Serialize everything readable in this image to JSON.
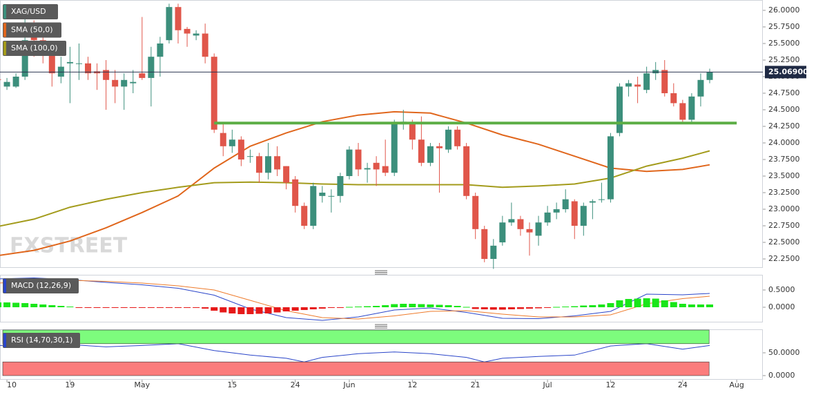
{
  "chart_data": [
    {
      "type": "candlestick",
      "up_color": "#3c8f7c",
      "down_color": "#e0564a",
      "series": [
        {
          "name": "XAG/USD",
          "color": "#3c8f7c",
          "open": [
            24.96,
            24.85,
            24.85,
            25.0,
            25.6,
            25.55,
            25.35,
            25.0,
            25.2,
            25.2,
            25.2,
            25.08,
            25.1,
            24.95,
            24.85,
            24.9,
            25.05,
            24.98,
            25.3,
            25.55,
            26.05,
            25.72,
            25.62,
            25.65,
            25.3,
            24.15,
            23.95,
            24.05,
            23.8,
            23.8,
            23.55,
            23.8,
            23.65,
            23.45,
            23.05,
            22.75,
            23.2,
            23.2,
            23.2,
            23.5,
            23.9,
            23.6,
            23.7,
            23.65,
            23.55,
            24.28,
            24.3,
            24.05,
            23.7,
            23.95,
            23.9,
            24.2,
            23.95,
            23.2,
            22.7,
            22.25,
            22.5,
            22.8,
            22.85,
            22.7,
            22.6,
            22.8,
            22.95,
            23.0,
            23.12,
            22.75,
            23.1,
            23.15,
            23.15,
            24.15,
            24.85,
            24.88,
            24.8,
            25.05,
            25.1,
            24.75,
            24.6,
            24.35,
            24.7,
            24.95
          ],
          "high": [
            25.0,
            24.98,
            25.05,
            25.95,
            25.85,
            25.65,
            25.45,
            25.3,
            25.45,
            25.5,
            25.3,
            25.2,
            25.25,
            25.1,
            25.05,
            25.1,
            25.9,
            25.45,
            25.6,
            26.1,
            26.1,
            25.75,
            25.7,
            25.8,
            25.35,
            24.3,
            24.2,
            24.1,
            23.9,
            23.85,
            24.0,
            23.95,
            23.65,
            23.5,
            23.1,
            23.4,
            23.35,
            23.3,
            23.55,
            23.95,
            24.0,
            23.7,
            23.8,
            24.05,
            24.35,
            24.5,
            24.35,
            24.4,
            24.0,
            24.0,
            24.25,
            24.25,
            24.0,
            23.25,
            22.75,
            22.55,
            22.9,
            23.1,
            22.9,
            22.8,
            22.9,
            23.05,
            23.1,
            23.3,
            23.15,
            23.1,
            23.15,
            23.4,
            24.15,
            24.9,
            24.95,
            25.0,
            25.15,
            25.22,
            25.25,
            24.9,
            24.65,
            24.75,
            25.05,
            25.12
          ],
          "low": [
            24.55,
            24.8,
            24.83,
            24.95,
            25.3,
            25.2,
            24.85,
            24.9,
            24.6,
            24.95,
            24.95,
            24.8,
            24.5,
            24.6,
            24.5,
            24.75,
            24.95,
            24.55,
            25.0,
            25.5,
            25.5,
            25.45,
            25.55,
            25.2,
            24.15,
            23.8,
            23.85,
            23.65,
            23.7,
            23.4,
            23.45,
            23.5,
            23.3,
            22.95,
            22.7,
            22.7,
            23.1,
            22.95,
            23.1,
            23.45,
            23.5,
            23.4,
            23.35,
            23.5,
            23.5,
            24.2,
            23.9,
            23.65,
            23.65,
            23.25,
            23.85,
            23.9,
            23.15,
            22.55,
            22.2,
            22.1,
            22.45,
            22.75,
            22.6,
            22.3,
            22.45,
            22.75,
            22.85,
            22.95,
            22.55,
            22.6,
            22.85,
            23.1,
            23.1,
            24.1,
            24.7,
            24.6,
            24.75,
            24.95,
            24.7,
            24.55,
            24.3,
            24.3,
            24.55,
            24.9
          ],
          "close": [
            24.95,
            24.92,
            25.0,
            25.55,
            25.55,
            25.35,
            25.05,
            25.15,
            25.22,
            25.2,
            25.05,
            25.05,
            24.95,
            24.85,
            24.95,
            24.92,
            24.98,
            25.3,
            25.5,
            26.05,
            25.7,
            25.65,
            25.65,
            25.3,
            24.2,
            23.95,
            24.05,
            23.75,
            23.8,
            23.55,
            23.8,
            23.6,
            23.4,
            23.05,
            22.75,
            23.35,
            23.25,
            23.2,
            23.5,
            23.9,
            23.6,
            23.62,
            23.6,
            23.55,
            24.3,
            24.32,
            24.05,
            23.7,
            23.95,
            23.92,
            24.2,
            23.95,
            23.2,
            22.7,
            22.25,
            22.45,
            22.8,
            22.85,
            22.7,
            22.65,
            22.8,
            22.95,
            23.0,
            23.15,
            22.75,
            23.05,
            23.12,
            23.15,
            24.1,
            24.85,
            24.9,
            24.85,
            25.05,
            25.1,
            24.75,
            24.6,
            24.35,
            24.7,
            24.95,
            25.07
          ]
        }
      ],
      "lines": [
        {
          "name": "SMA (50,0)",
          "color": "#e0661c",
          "x": [
            0,
            4,
            8,
            12,
            16,
            20,
            24,
            28,
            32,
            36,
            40,
            44,
            48,
            52,
            56,
            60,
            64,
            68,
            72,
            76,
            79
          ],
          "values": [
            22.3,
            22.38,
            22.52,
            22.72,
            22.95,
            23.2,
            23.62,
            23.95,
            24.15,
            24.32,
            24.42,
            24.47,
            24.45,
            24.3,
            24.12,
            23.98,
            23.8,
            23.62,
            23.57,
            23.6,
            23.67
          ]
        },
        {
          "name": "SMA (100,0)",
          "color": "#a39b1b",
          "x": [
            0,
            4,
            8,
            12,
            16,
            20,
            24,
            28,
            32,
            36,
            40,
            44,
            48,
            52,
            56,
            60,
            64,
            68,
            72,
            76,
            79
          ],
          "values": [
            22.74,
            22.85,
            23.03,
            23.15,
            23.25,
            23.33,
            23.4,
            23.41,
            23.4,
            23.38,
            23.37,
            23.37,
            23.37,
            23.37,
            23.33,
            23.35,
            23.38,
            23.47,
            23.65,
            23.77,
            23.88
          ]
        }
      ],
      "support_level": {
        "value": 24.3,
        "x": [
          24,
          82
        ],
        "color": "#5cae45"
      },
      "last_price": {
        "value": 25.069,
        "label": "25.06900"
      },
      "watermark": "FXSTREET",
      "xlim": [
        0.23,
        84.9
      ],
      "xticks": [
        {
          "value": 1,
          "label": "10"
        },
        {
          "value": 8,
          "label": "19"
        },
        {
          "value": 16,
          "label": "May"
        },
        {
          "value": 26,
          "label": "15"
        },
        {
          "value": 33,
          "label": "24"
        },
        {
          "value": 39,
          "label": "Jun"
        },
        {
          "value": 46,
          "label": "12"
        },
        {
          "value": 53,
          "label": "21"
        },
        {
          "value": 61,
          "label": "Jul"
        },
        {
          "value": 68,
          "label": "12"
        },
        {
          "value": 76,
          "label": "24"
        },
        {
          "value": 82,
          "label": "Aug"
        }
      ],
      "ylim": [
        22.115,
        26.156
      ],
      "yticks": [
        {
          "value": 26,
          "label": "26.0000"
        },
        {
          "value": 25.75,
          "label": "25.7500"
        },
        {
          "value": 25.5,
          "label": "25.5000"
        },
        {
          "value": 25.25,
          "label": "25.2500"
        },
        {
          "value": 25,
          "label": "25.0000"
        },
        {
          "value": 24.75,
          "label": "24.7500"
        },
        {
          "value": 24.5,
          "label": "24.5000"
        },
        {
          "value": 24.25,
          "label": "24.2500"
        },
        {
          "value": 24,
          "label": "24.0000"
        },
        {
          "value": 23.75,
          "label": "23.7500"
        },
        {
          "value": 23.5,
          "label": "23.5000"
        },
        {
          "value": 23.25,
          "label": "23.2500"
        },
        {
          "value": 23,
          "label": "23.0000"
        },
        {
          "value": 22.75,
          "label": "22.7500"
        },
        {
          "value": 22.5,
          "label": "22.5000"
        },
        {
          "value": 22.25,
          "label": "22.2500"
        }
      ]
    },
    {
      "type": "macd",
      "title": "MACD (12,26,9)",
      "title_color": "#2a45c9",
      "histogram": {
        "up_color": "#19e619",
        "down_color": "#e61919",
        "values": [
          0.14,
          0.14,
          0.13,
          0.12,
          0.1,
          0.08,
          0.06,
          0.04,
          0.02,
          -0.01,
          -0.01,
          -0.01,
          -0.02,
          -0.02,
          -0.02,
          -0.01,
          -0.01,
          -0.01,
          -0.01,
          -0.02,
          -0.01,
          -0.01,
          -0.01,
          -0.04,
          -0.1,
          -0.15,
          -0.18,
          -0.2,
          -0.2,
          -0.19,
          -0.18,
          -0.15,
          -0.12,
          -0.1,
          -0.08,
          -0.06,
          -0.04,
          -0.02,
          -0.01,
          0.01,
          0.02,
          0.03,
          0.04,
          0.06,
          0.09,
          0.1,
          0.1,
          0.09,
          0.08,
          0.07,
          0.06,
          0.04,
          0.01,
          -0.05,
          -0.06,
          -0.07,
          -0.07,
          -0.06,
          -0.05,
          -0.04,
          -0.03,
          -0.02,
          0.01,
          0.02,
          0.03,
          0.05,
          0.06,
          0.08,
          0.12,
          0.2,
          0.24,
          0.25,
          0.26,
          0.25,
          0.2,
          0.15,
          0.1,
          0.08,
          0.08,
          0.08
        ]
      },
      "series": [
        {
          "color": "#2a45c9",
          "x": [
            0,
            4,
            8,
            12,
            16,
            20,
            24,
            28,
            32,
            36,
            40,
            44,
            48,
            52,
            56,
            60,
            64,
            68,
            72,
            76,
            79
          ],
          "values": [
            0.82,
            0.85,
            0.8,
            0.72,
            0.65,
            0.55,
            0.35,
            -0.05,
            -0.3,
            -0.38,
            -0.28,
            -0.08,
            -0.02,
            -0.15,
            -0.32,
            -0.33,
            -0.25,
            -0.12,
            0.38,
            0.36,
            0.4
          ]
        },
        {
          "color": "#ee7a2a",
          "x": [
            0,
            4,
            8,
            12,
            16,
            20,
            24,
            28,
            32,
            36,
            40,
            44,
            48,
            52,
            56,
            60,
            64,
            68,
            72,
            76,
            79
          ],
          "values": [
            0.7,
            0.75,
            0.78,
            0.75,
            0.7,
            0.62,
            0.5,
            0.2,
            -0.1,
            -0.3,
            -0.34,
            -0.25,
            -0.12,
            -0.1,
            -0.2,
            -0.28,
            -0.28,
            -0.22,
            0.1,
            0.25,
            0.32
          ]
        }
      ],
      "ylim": [
        -0.44,
        0.94
      ],
      "yticks": [
        {
          "value": 0.5,
          "label": "0.5000"
        },
        {
          "value": 0,
          "label": "0.0000"
        }
      ]
    },
    {
      "type": "rsi",
      "title": "RSI (14,70,30,1)",
      "title_color": "#2a45c9",
      "bands": [
        {
          "range": [
            70,
            100
          ],
          "color": "#7dfc7d"
        },
        {
          "range": [
            0,
            30
          ],
          "color": "#fb7c7c"
        }
      ],
      "series": [
        {
          "color": "#2a45c9",
          "x": [
            0,
            4,
            8,
            12,
            16,
            20,
            24,
            28,
            32,
            34,
            36,
            40,
            44,
            48,
            52,
            54,
            56,
            60,
            64,
            68,
            72,
            76,
            79
          ],
          "values": [
            66,
            68,
            68,
            63,
            66,
            70,
            55,
            45,
            38,
            30,
            40,
            48,
            52,
            48,
            40,
            30,
            38,
            42,
            45,
            65,
            70,
            58,
            66
          ]
        }
      ],
      "ylim": [
        -9.1,
        101.5
      ],
      "yticks": [
        {
          "value": 50,
          "label": "50.0000"
        },
        {
          "value": 0,
          "label": "0.0000"
        }
      ]
    }
  ]
}
